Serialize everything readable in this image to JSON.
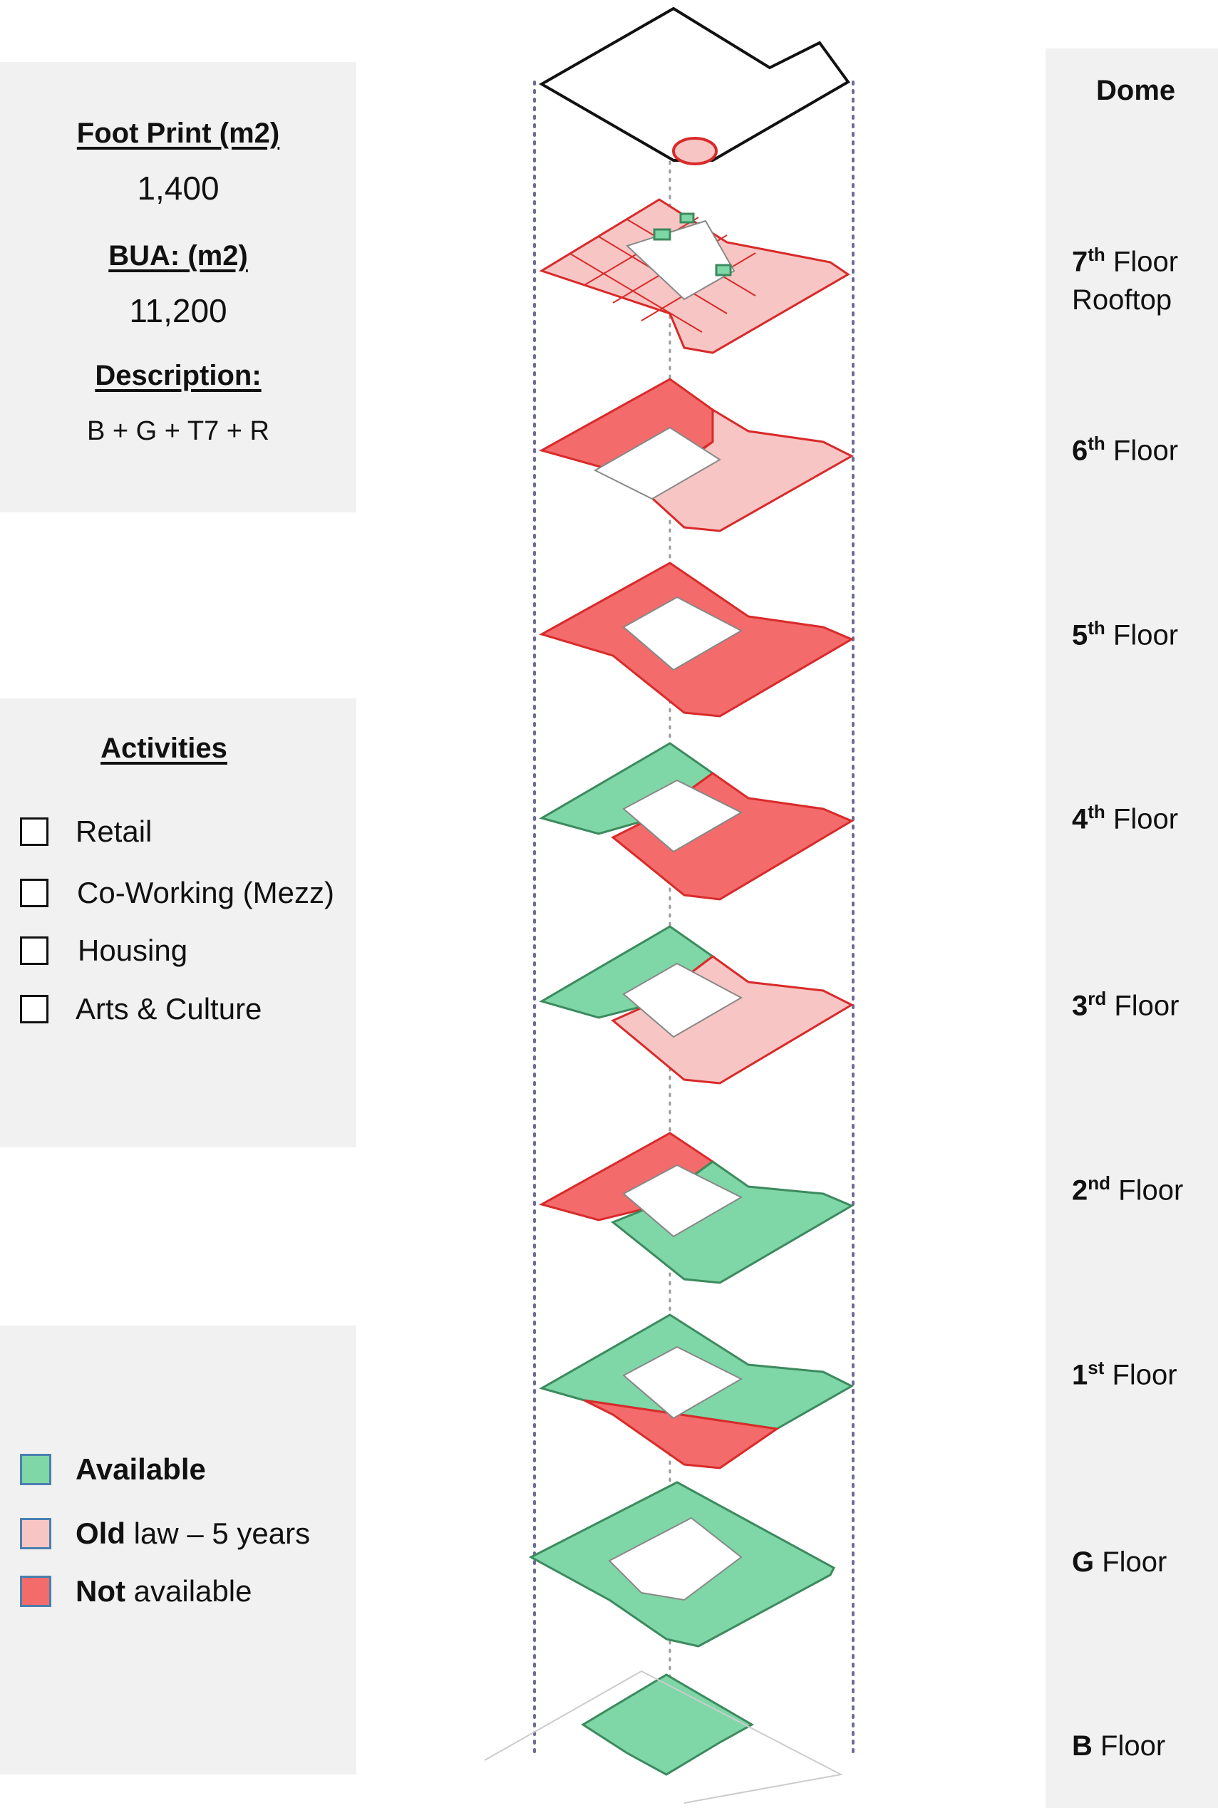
{
  "info": {
    "footprint_label": "Foot Print (m2)",
    "footprint_value": "1,400",
    "bua_label": "BUA: (m2)",
    "bua_value": "11,200",
    "description_label": "Description:",
    "description_value": "B + G + T7 + R"
  },
  "activities": {
    "heading": "Activities",
    "items": [
      {
        "label": "Retail",
        "checked": false
      },
      {
        "label": "Co-Working (Mezz)",
        "checked": false
      },
      {
        "label": "Housing",
        "checked": false
      },
      {
        "label": "Arts & Culture",
        "checked": false
      }
    ]
  },
  "legend": {
    "items": [
      {
        "bold": "Available",
        "rest": "",
        "color": "#7fd6a6"
      },
      {
        "bold": "Old",
        "rest": " law – 5 years",
        "color": "#f7c6c4"
      },
      {
        "bold": "Not",
        "rest": " available",
        "color": "#f36b6b"
      }
    ]
  },
  "floors": [
    {
      "num": "",
      "sup": "",
      "name": "Dome",
      "name2": ""
    },
    {
      "num": "7",
      "sup": "th",
      "name": " Floor",
      "name2": "Rooftop"
    },
    {
      "num": "6",
      "sup": "th",
      "name": " Floor",
      "name2": ""
    },
    {
      "num": "5",
      "sup": "th",
      "name": " Floor",
      "name2": ""
    },
    {
      "num": "4",
      "sup": "th",
      "name": " Floor",
      "name2": ""
    },
    {
      "num": "3",
      "sup": "rd",
      "name": " Floor",
      "name2": ""
    },
    {
      "num": "2",
      "sup": "nd",
      "name": " Floor",
      "name2": ""
    },
    {
      "num": "1",
      "sup": "st",
      "name": " Floor",
      "name2": ""
    },
    {
      "num": "G",
      "sup": "",
      "name": " Floor",
      "name2": ""
    },
    {
      "num": "B",
      "sup": "",
      "name": " Floor",
      "name2": ""
    }
  ],
  "colors": {
    "available": "#7fd6a6",
    "old_law": "#f7c6c4",
    "not_available": "#f36b6b",
    "available_stroke": "#3c8a5e",
    "red_stroke": "#d92a2a",
    "guide": "#6b6b9a"
  },
  "plan_status": {
    "dome": "outline",
    "floor_7": "old_law",
    "floor_6": {
      "left": "not_available",
      "right": "old_law"
    },
    "floor_5": "not_available",
    "floor_4": {
      "left": "available",
      "right": "not_available"
    },
    "floor_3": {
      "left": "available",
      "right": "old_law"
    },
    "floor_2": {
      "left": "not_available",
      "right": "available"
    },
    "floor_1": {
      "top": "available",
      "bottom": "not_available"
    },
    "floor_G": "available",
    "floor_B": "available"
  }
}
